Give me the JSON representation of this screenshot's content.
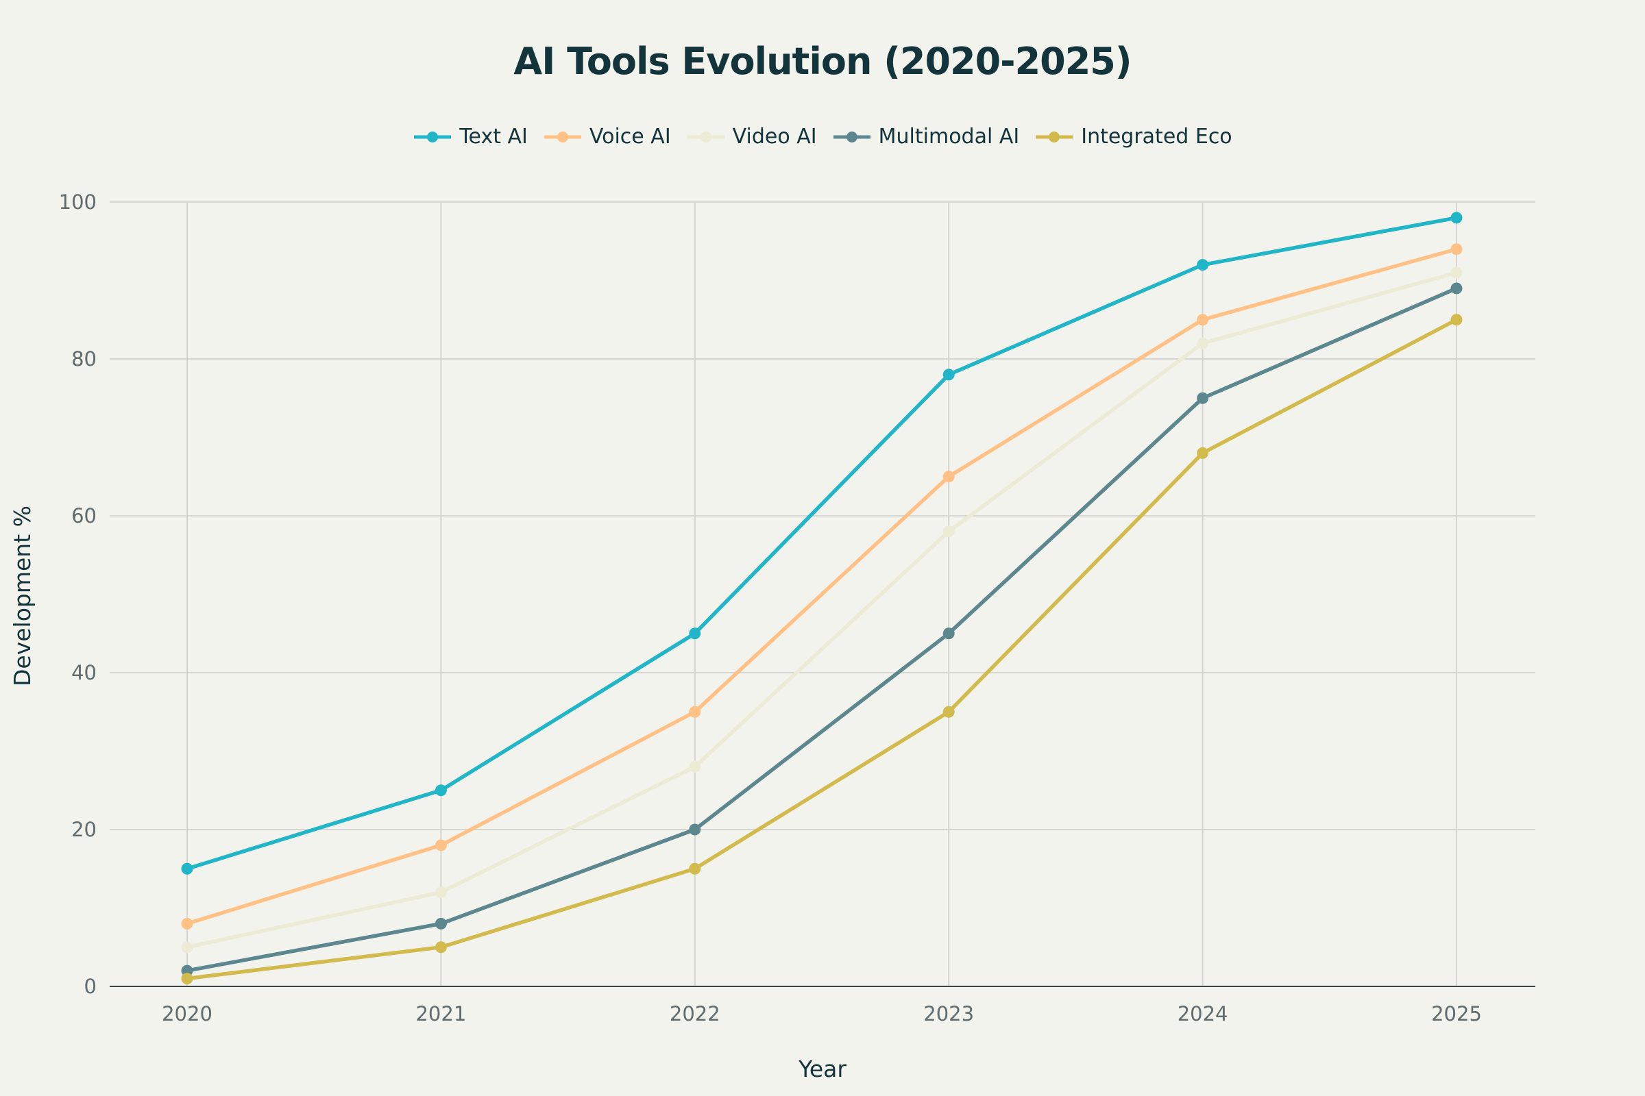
{
  "chart_data": {
    "type": "line",
    "title": "AI Tools Evolution (2020-2025)",
    "xlabel": "Year",
    "ylabel": "Development %",
    "x": [
      "2020",
      "2021",
      "2022",
      "2023",
      "2024",
      "2025"
    ],
    "yticks": [
      "0",
      "20",
      "40",
      "60",
      "80",
      "100"
    ],
    "ylim": [
      0,
      100
    ],
    "grid": true,
    "legend_position": "top-center",
    "series": [
      {
        "name": "Text AI",
        "color": "#21B5C8",
        "values": [
          15,
          25,
          45,
          78,
          92,
          98
        ]
      },
      {
        "name": "Voice AI",
        "color": "#FFC185",
        "values": [
          8,
          18,
          35,
          65,
          85,
          94
        ]
      },
      {
        "name": "Video AI",
        "color": "#ECEBD5",
        "values": [
          5,
          12,
          28,
          58,
          82,
          91
        ]
      },
      {
        "name": "Multimodal AI",
        "color": "#5D878F",
        "values": [
          2,
          8,
          20,
          45,
          75,
          89
        ]
      },
      {
        "name": "Integrated Eco",
        "color": "#D2BA4C",
        "values": [
          1,
          5,
          15,
          35,
          68,
          85
        ]
      }
    ]
  }
}
